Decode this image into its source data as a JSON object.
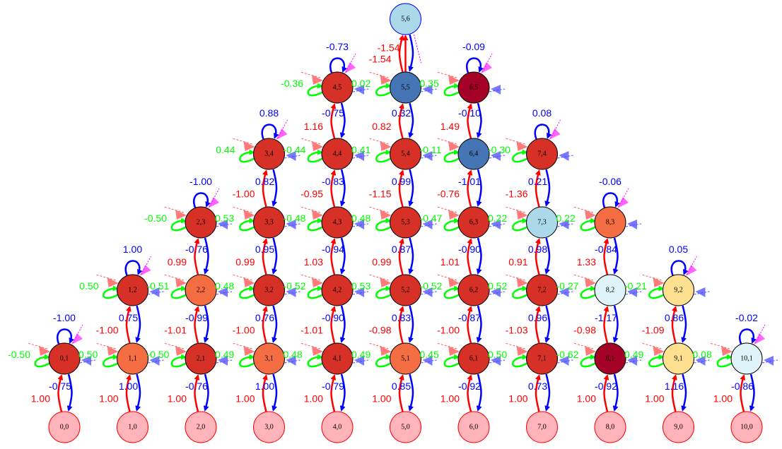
{
  "diagram": {
    "colors": {
      "input_node": "#ffb3ba",
      "up_edge": "#ff0000",
      "down_edge": "#0000ff",
      "self_loop": "#00ff00",
      "stub_red": "#ff5a5a",
      "stub_blue": "#4a4aff",
      "stub_magenta": "#ff00ff"
    },
    "nodes": [
      {
        "id": "0,0",
        "color": "#ffb3ba"
      },
      {
        "id": "1,0",
        "color": "#ffb3ba"
      },
      {
        "id": "2,0",
        "color": "#ffb3ba"
      },
      {
        "id": "3,0",
        "color": "#ffb3ba"
      },
      {
        "id": "4,0",
        "color": "#ffb3ba"
      },
      {
        "id": "5,0",
        "color": "#ffb3ba"
      },
      {
        "id": "6,0",
        "color": "#ffb3ba"
      },
      {
        "id": "7,0",
        "color": "#ffb3ba"
      },
      {
        "id": "8,0",
        "color": "#ffb3ba"
      },
      {
        "id": "9,0",
        "color": "#ffb3ba"
      },
      {
        "id": "10,0",
        "color": "#ffb3ba"
      },
      {
        "id": "0,1",
        "color": "#d73027",
        "self_loop": "-1.00",
        "loop_color": "#0000ff",
        "left_label": "-0.50",
        "right_label": "0.50",
        "up": "1.00",
        "down": "-0.75"
      },
      {
        "id": "1,1",
        "color": "#f46d43",
        "left_label": "",
        "right_label": "-0.50",
        "up": "1.00",
        "down": "1.00"
      },
      {
        "id": "2,1",
        "color": "#d73027",
        "right_label": "0.49",
        "up": "1.00",
        "down": "-0.76"
      },
      {
        "id": "3,1",
        "color": "#f46d43",
        "right_label": "0.48",
        "up": "1.00",
        "down": "1.00"
      },
      {
        "id": "4,1",
        "color": "#d73027",
        "right_label": "0.49",
        "up": "1.00",
        "down": "-0.79"
      },
      {
        "id": "5,1",
        "color": "#f46d43",
        "right_label": "0.45",
        "up": "1.00",
        "down": "0.85"
      },
      {
        "id": "6,1",
        "color": "#d73027",
        "right_label": "0.50",
        "up": "1.00",
        "down": "-0.92"
      },
      {
        "id": "7,1",
        "color": "#d73027",
        "right_label": "-0.62",
        "up": "1.00",
        "down": "0.73"
      },
      {
        "id": "8,1",
        "color": "#a50026",
        "right_label": "0.49",
        "up": "1.00",
        "down": "-0.92"
      },
      {
        "id": "9,1",
        "color": "#fee090",
        "right_label": "0.08",
        "up": "1.00",
        "down": "1.16"
      },
      {
        "id": "10,1",
        "color": "#e0f3f8",
        "self_loop": "-0.02",
        "loop_color": "#0000ff",
        "up": "1.00",
        "down": "-0.86"
      },
      {
        "id": "1,2",
        "color": "#d73027",
        "self_loop": "1.00",
        "loop_color": "#0000ff",
        "left_label": "0.50",
        "right_label": "-0.51",
        "up": "-1.00",
        "down": "0.75"
      },
      {
        "id": "2,2",
        "color": "#f46d43",
        "right_label": "0.48",
        "up": "-1.01",
        "down": "-0.99"
      },
      {
        "id": "3,2",
        "color": "#d73027",
        "right_label": "-0.52",
        "up": "-1.00",
        "down": "0.76"
      },
      {
        "id": "4,2",
        "color": "#d73027",
        "right_label": "0.53",
        "up": "-1.01",
        "down": "-0.90"
      },
      {
        "id": "5,2",
        "color": "#d73027",
        "right_label": "-0.52",
        "up": "-0.98",
        "down": "0.83"
      },
      {
        "id": "6,2",
        "color": "#d73027",
        "right_label": "0.52",
        "up": "-1.00",
        "down": "-0.87"
      },
      {
        "id": "7,2",
        "color": "#d73027",
        "right_label": "-0.27",
        "up": "-1.03",
        "down": "0.96"
      },
      {
        "id": "8,2",
        "color": "#e0f3f8",
        "right_label": "-0.21",
        "up": "-0.98",
        "down": "-1.17"
      },
      {
        "id": "9,2",
        "color": "#fee090",
        "self_loop": "0.05",
        "loop_color": "#0000ff",
        "up": "-1.09",
        "down": "0.86"
      },
      {
        "id": "2,3",
        "color": "#d73027",
        "self_loop": "-1.00",
        "loop_color": "#0000ff",
        "left_label": "-0.50",
        "right_label": "0.53",
        "up": "0.99",
        "down": "-0.76"
      },
      {
        "id": "3,3",
        "color": "#d73027",
        "right_label": "-0.48",
        "up": "0.99",
        "down": "0.95"
      },
      {
        "id": "4,3",
        "color": "#d73027",
        "right_label": "0.48",
        "up": "1.03",
        "down": "-0.94"
      },
      {
        "id": "5,3",
        "color": "#d73027",
        "right_label": "-0.47",
        "up": "0.99",
        "down": "0.87"
      },
      {
        "id": "6,3",
        "color": "#d73027",
        "right_label": "0.22",
        "up": "1.01",
        "down": "-0.90"
      },
      {
        "id": "7,3",
        "color": "#abd9e9",
        "right_label": "0.22",
        "up": "0.91",
        "down": "0.98"
      },
      {
        "id": "8,3",
        "color": "#f46d43",
        "self_loop": "-0.06",
        "loop_color": "#0000ff",
        "up": "1.33",
        "down": "-0.84"
      },
      {
        "id": "3,4",
        "color": "#d73027",
        "self_loop": "0.88",
        "loop_color": "#0000ff",
        "left_label": "0.44",
        "right_label": "-0.44",
        "up": "-1.00",
        "down": "0.82"
      },
      {
        "id": "4,4",
        "color": "#d73027",
        "right_label": "0.41",
        "up": "-0.95",
        "down": "-0.83"
      },
      {
        "id": "5,4",
        "color": "#d73027",
        "right_label": "-0.11",
        "up": "-1.15",
        "down": "0.99"
      },
      {
        "id": "6,4",
        "color": "#4575b4",
        "right_label": "-0.30",
        "up": "-0.76",
        "down": "-1.01"
      },
      {
        "id": "7,4",
        "color": "#d73027",
        "self_loop": "0.08",
        "loop_color": "#0000ff",
        "up": "-1.36",
        "down": "0.21"
      },
      {
        "id": "4,5",
        "color": "#d73027",
        "self_loop": "-0.73",
        "loop_color": "#0000ff",
        "left_label": "-0.36",
        "right_label": "0.02",
        "up": "1.16",
        "down": "-0.75"
      },
      {
        "id": "5,5",
        "color": "#4575b4",
        "right_label": "0.35",
        "up": "0.82",
        "down": "0.32"
      },
      {
        "id": "6,5",
        "color": "#a50026",
        "self_loop": "-0.09",
        "loop_color": "#0000ff",
        "up": "1.49",
        "down": "-0.10"
      },
      {
        "id": "5,6",
        "color": "#abd9e9",
        "up": "-1.54"
      }
    ]
  }
}
